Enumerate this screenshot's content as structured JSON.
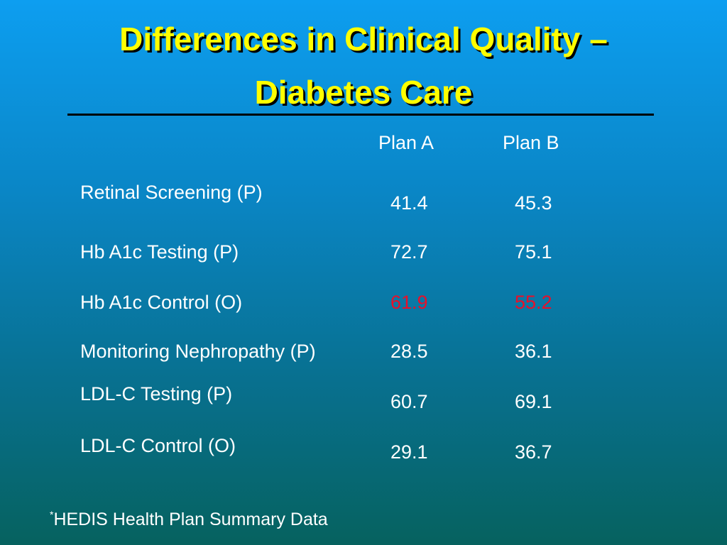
{
  "slide": {
    "title_line1": "Differences in Clinical Quality –",
    "title_line2": "Diabetes Care"
  },
  "table": {
    "columns": [
      "Plan A",
      "Plan B"
    ],
    "rows": [
      {
        "label": "Retinal Screening (P)",
        "plan_a": "41.4",
        "plan_b": "45.3"
      },
      {
        "label": "Hb A1c Testing (P)",
        "plan_a": "72.7",
        "plan_b": "75.1"
      },
      {
        "label": "Hb A1c Control (O)",
        "plan_a": "61.9",
        "plan_b": "55.2"
      },
      {
        "label": "Monitoring Nephropathy (P)",
        "plan_a": "28.5",
        "plan_b": "36.1"
      },
      {
        "label": "LDL-C Testing (P)",
        "plan_a": "60.7",
        "plan_b": "69.1"
      },
      {
        "label": "LDL-C Control (O)",
        "plan_a": "29.1",
        "plan_b": "36.7"
      }
    ],
    "highlight_color": "#e8102a"
  },
  "footnote": {
    "marker": "*",
    "text": "HEDIS Health Plan Summary Data"
  },
  "colors": {
    "title": "#ffff00",
    "text": "#ffffff",
    "background_top": "#0d9ef0",
    "background_bottom": "#06625f"
  }
}
